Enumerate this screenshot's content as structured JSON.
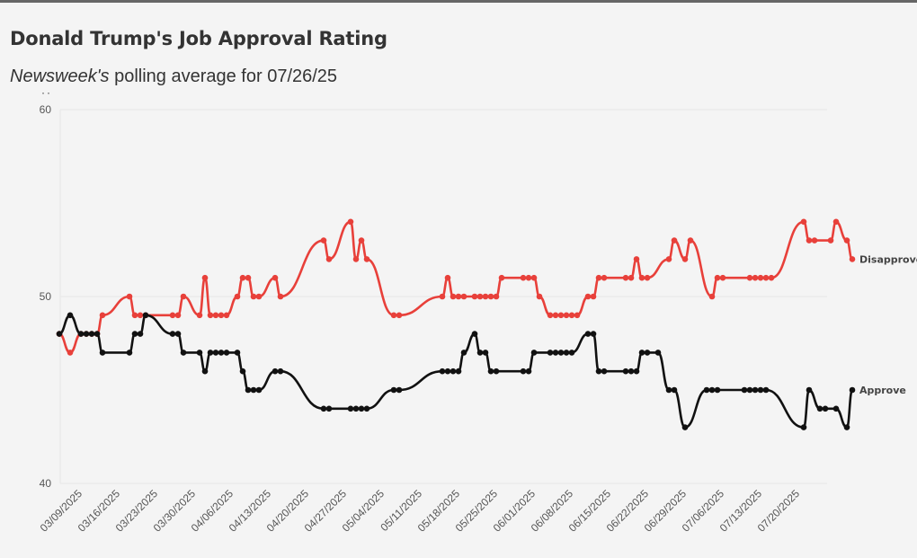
{
  "title": "Donald Trump's Job Approval Rating",
  "subtitle": {
    "source": "Newsweek's",
    "rest": " polling average for 07/26/25"
  },
  "colors": {
    "approve": "#111111",
    "disapprove": "#e8403a",
    "grid": "#e6e6e6",
    "background": "#f4f4f4"
  },
  "chart_data": {
    "type": "line",
    "title": "Donald Trump's Job Approval Rating",
    "subtitle": "Newsweek's polling average for 07/26/25",
    "ylim": [
      40,
      60
    ],
    "yticks": [
      40,
      50,
      60
    ],
    "xlim": [
      "2025-03-07",
      "2025-07-27"
    ],
    "xticks": [
      "03/09/2025",
      "03/16/2025",
      "03/23/2025",
      "03/30/2025",
      "04/06/2025",
      "04/13/2025",
      "04/20/2025",
      "04/27/2025",
      "05/04/2025",
      "05/11/2025",
      "05/18/2025",
      "05/25/2025",
      "06/01/2025",
      "06/08/2025",
      "06/15/2025",
      "06/22/2025",
      "06/29/2025",
      "07/06/2025",
      "07/13/2025",
      "07/20/2025"
    ],
    "grid": true,
    "series": [
      {
        "name": "Disapprove",
        "color": "#e8403a",
        "points": [
          [
            "2025-03-07",
            48
          ],
          [
            "2025-03-09",
            47
          ],
          [
            "2025-03-11",
            48
          ],
          [
            "2025-03-12",
            48
          ],
          [
            "2025-03-13",
            48
          ],
          [
            "2025-03-14",
            48
          ],
          [
            "2025-03-15",
            49
          ],
          [
            "2025-03-20",
            50
          ],
          [
            "2025-03-21",
            49
          ],
          [
            "2025-03-22",
            49
          ],
          [
            "2025-03-23",
            49
          ],
          [
            "2025-03-28",
            49
          ],
          [
            "2025-03-29",
            49
          ],
          [
            "2025-03-30",
            50
          ],
          [
            "2025-04-02",
            49
          ],
          [
            "2025-04-03",
            51
          ],
          [
            "2025-04-04",
            49
          ],
          [
            "2025-04-05",
            49
          ],
          [
            "2025-04-06",
            49
          ],
          [
            "2025-04-07",
            49
          ],
          [
            "2025-04-09",
            50
          ],
          [
            "2025-04-10",
            51
          ],
          [
            "2025-04-11",
            51
          ],
          [
            "2025-04-12",
            50
          ],
          [
            "2025-04-13",
            50
          ],
          [
            "2025-04-16",
            51
          ],
          [
            "2025-04-17",
            50
          ],
          [
            "2025-04-25",
            53
          ],
          [
            "2025-04-26",
            52
          ],
          [
            "2025-04-30",
            54
          ],
          [
            "2025-05-01",
            52
          ],
          [
            "2025-05-02",
            53
          ],
          [
            "2025-05-03",
            52
          ],
          [
            "2025-05-08",
            49
          ],
          [
            "2025-05-09",
            49
          ],
          [
            "2025-05-17",
            50
          ],
          [
            "2025-05-18",
            51
          ],
          [
            "2025-05-19",
            50
          ],
          [
            "2025-05-20",
            50
          ],
          [
            "2025-05-21",
            50
          ],
          [
            "2025-05-23",
            50
          ],
          [
            "2025-05-24",
            50
          ],
          [
            "2025-05-25",
            50
          ],
          [
            "2025-05-26",
            50
          ],
          [
            "2025-05-27",
            50
          ],
          [
            "2025-05-28",
            51
          ],
          [
            "2025-06-01",
            51
          ],
          [
            "2025-06-02",
            51
          ],
          [
            "2025-06-03",
            51
          ],
          [
            "2025-06-04",
            50
          ],
          [
            "2025-06-06",
            49
          ],
          [
            "2025-06-07",
            49
          ],
          [
            "2025-06-08",
            49
          ],
          [
            "2025-06-09",
            49
          ],
          [
            "2025-06-10",
            49
          ],
          [
            "2025-06-11",
            49
          ],
          [
            "2025-06-13",
            50
          ],
          [
            "2025-06-14",
            50
          ],
          [
            "2025-06-15",
            51
          ],
          [
            "2025-06-16",
            51
          ],
          [
            "2025-06-20",
            51
          ],
          [
            "2025-06-21",
            51
          ],
          [
            "2025-06-22",
            52
          ],
          [
            "2025-06-23",
            51
          ],
          [
            "2025-06-24",
            51
          ],
          [
            "2025-06-28",
            52
          ],
          [
            "2025-06-29",
            53
          ],
          [
            "2025-07-01",
            52
          ],
          [
            "2025-07-02",
            53
          ],
          [
            "2025-07-06",
            50
          ],
          [
            "2025-07-07",
            51
          ],
          [
            "2025-07-08",
            51
          ],
          [
            "2025-07-13",
            51
          ],
          [
            "2025-07-14",
            51
          ],
          [
            "2025-07-15",
            51
          ],
          [
            "2025-07-16",
            51
          ],
          [
            "2025-07-17",
            51
          ],
          [
            "2025-07-23",
            54
          ],
          [
            "2025-07-24",
            53
          ],
          [
            "2025-07-25",
            53
          ],
          [
            "2025-07-28",
            53
          ],
          [
            "2025-07-29",
            54
          ],
          [
            "2025-07-31",
            53
          ],
          [
            "2025-08-01",
            52
          ]
        ]
      },
      {
        "name": "Approve",
        "color": "#111111",
        "points": [
          [
            "2025-03-07",
            48
          ],
          [
            "2025-03-09",
            49
          ],
          [
            "2025-03-11",
            48
          ],
          [
            "2025-03-12",
            48
          ],
          [
            "2025-03-13",
            48
          ],
          [
            "2025-03-14",
            48
          ],
          [
            "2025-03-15",
            47
          ],
          [
            "2025-03-20",
            47
          ],
          [
            "2025-03-21",
            48
          ],
          [
            "2025-03-22",
            48
          ],
          [
            "2025-03-23",
            49
          ],
          [
            "2025-03-28",
            48
          ],
          [
            "2025-03-29",
            48
          ],
          [
            "2025-03-30",
            47
          ],
          [
            "2025-04-02",
            47
          ],
          [
            "2025-04-03",
            46
          ],
          [
            "2025-04-04",
            47
          ],
          [
            "2025-04-05",
            47
          ],
          [
            "2025-04-06",
            47
          ],
          [
            "2025-04-07",
            47
          ],
          [
            "2025-04-09",
            47
          ],
          [
            "2025-04-10",
            46
          ],
          [
            "2025-04-11",
            45
          ],
          [
            "2025-04-12",
            45
          ],
          [
            "2025-04-13",
            45
          ],
          [
            "2025-04-16",
            46
          ],
          [
            "2025-04-17",
            46
          ],
          [
            "2025-04-25",
            44
          ],
          [
            "2025-04-26",
            44
          ],
          [
            "2025-04-30",
            44
          ],
          [
            "2025-05-01",
            44
          ],
          [
            "2025-05-02",
            44
          ],
          [
            "2025-05-03",
            44
          ],
          [
            "2025-05-08",
            45
          ],
          [
            "2025-05-09",
            45
          ],
          [
            "2025-05-17",
            46
          ],
          [
            "2025-05-18",
            46
          ],
          [
            "2025-05-19",
            46
          ],
          [
            "2025-05-20",
            46
          ],
          [
            "2025-05-21",
            47
          ],
          [
            "2025-05-23",
            48
          ],
          [
            "2025-05-24",
            47
          ],
          [
            "2025-05-25",
            47
          ],
          [
            "2025-05-26",
            46
          ],
          [
            "2025-05-27",
            46
          ],
          [
            "2025-06-01",
            46
          ],
          [
            "2025-06-02",
            46
          ],
          [
            "2025-06-03",
            47
          ],
          [
            "2025-06-06",
            47
          ],
          [
            "2025-06-07",
            47
          ],
          [
            "2025-06-08",
            47
          ],
          [
            "2025-06-09",
            47
          ],
          [
            "2025-06-10",
            47
          ],
          [
            "2025-06-13",
            48
          ],
          [
            "2025-06-14",
            48
          ],
          [
            "2025-06-15",
            46
          ],
          [
            "2025-06-16",
            46
          ],
          [
            "2025-06-20",
            46
          ],
          [
            "2025-06-21",
            46
          ],
          [
            "2025-06-22",
            46
          ],
          [
            "2025-06-23",
            47
          ],
          [
            "2025-06-24",
            47
          ],
          [
            "2025-06-26",
            47
          ],
          [
            "2025-06-28",
            45
          ],
          [
            "2025-06-29",
            45
          ],
          [
            "2025-07-01",
            43
          ],
          [
            "2025-07-05",
            45
          ],
          [
            "2025-07-06",
            45
          ],
          [
            "2025-07-07",
            45
          ],
          [
            "2025-07-12",
            45
          ],
          [
            "2025-07-13",
            45
          ],
          [
            "2025-07-14",
            45
          ],
          [
            "2025-07-15",
            45
          ],
          [
            "2025-07-16",
            45
          ],
          [
            "2025-07-23",
            43
          ],
          [
            "2025-07-24",
            45
          ],
          [
            "2025-07-26",
            44
          ],
          [
            "2025-07-27",
            44
          ],
          [
            "2025-07-29",
            44
          ],
          [
            "2025-07-31",
            43
          ],
          [
            "2025-08-01",
            45
          ]
        ]
      }
    ]
  }
}
